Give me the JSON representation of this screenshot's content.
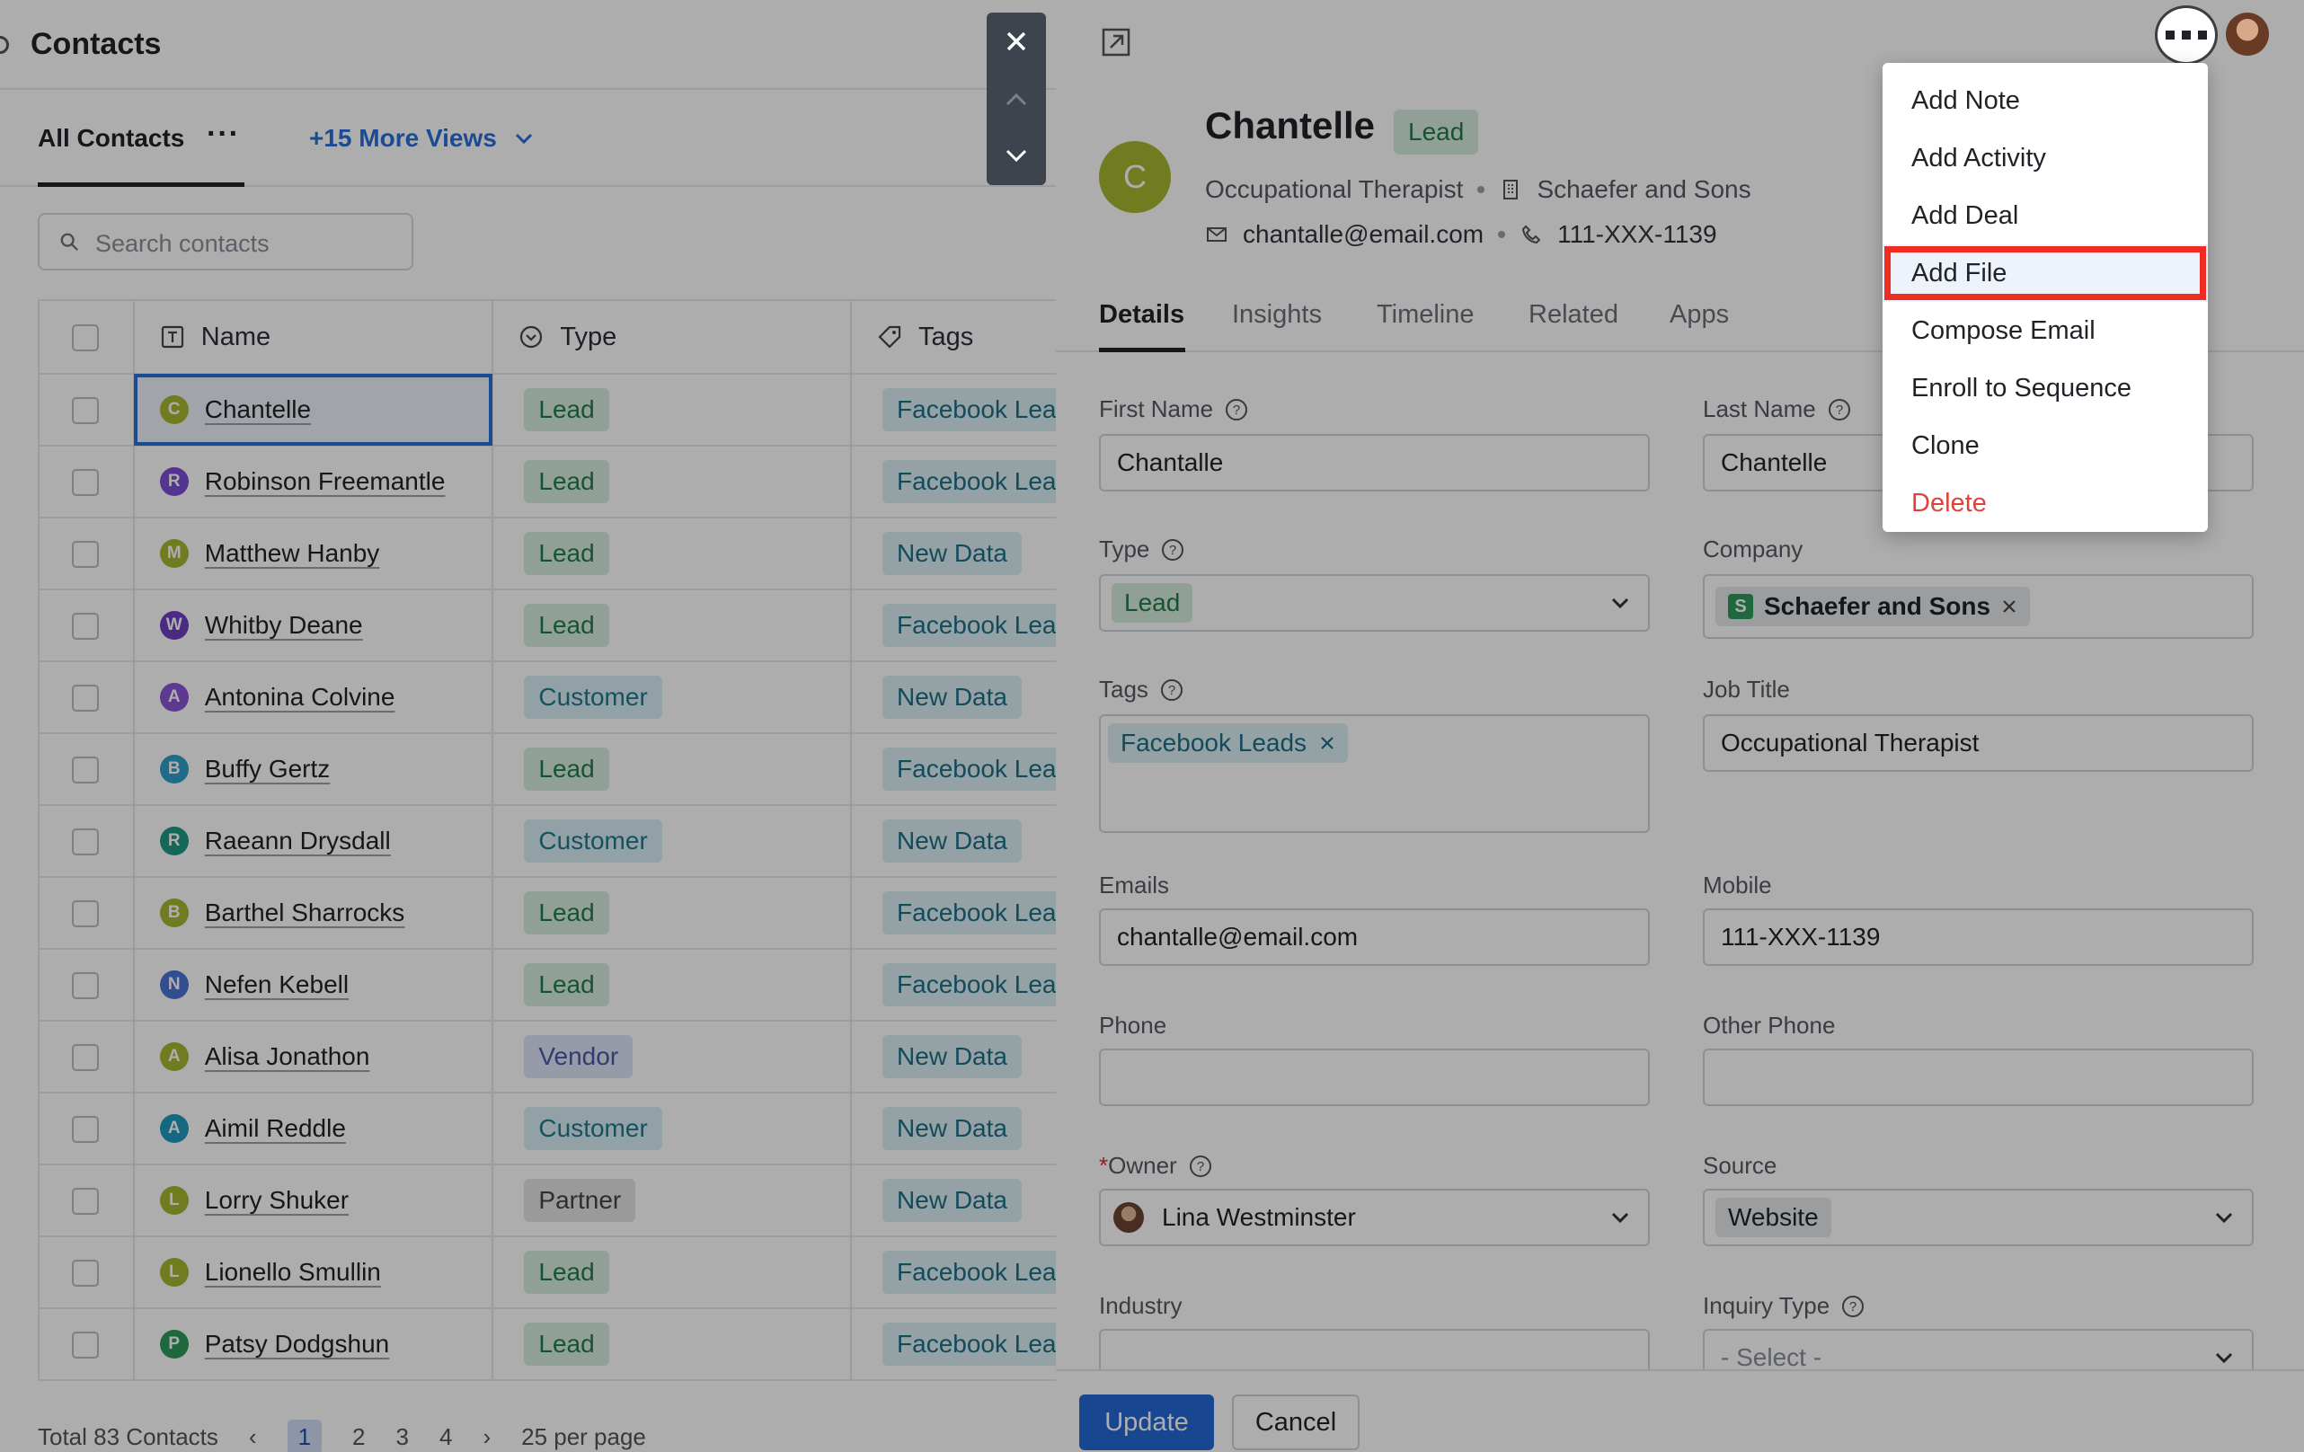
{
  "list": {
    "title": "Contacts",
    "view_tab": "All Contacts",
    "view_tab_more": "···",
    "more_views": "+15 More Views",
    "search_placeholder": "Search contacts",
    "columns": {
      "name": "Name",
      "type": "Type",
      "tags": "Tags"
    },
    "rows": [
      {
        "initial": "C",
        "name": "Chantelle",
        "type": "Lead",
        "tag": "Facebook Lea",
        "color": "#a7b52e"
      },
      {
        "initial": "R",
        "name": "Robinson Freemantle",
        "type": "Lead",
        "tag": "Facebook Lea",
        "color": "#7b4fd6"
      },
      {
        "initial": "M",
        "name": "Matthew Hanby",
        "type": "Lead",
        "tag": "New Data",
        "color": "#a7b52e"
      },
      {
        "initial": "W",
        "name": "Whitby Deane",
        "type": "Lead",
        "tag": "Facebook Lea",
        "color": "#6e3fc2"
      },
      {
        "initial": "A",
        "name": "Antonina Colvine",
        "type": "Customer",
        "tag": "New Data",
        "color": "#8a55d8"
      },
      {
        "initial": "B",
        "name": "Buffy Gertz",
        "type": "Lead",
        "tag": "Facebook Lea",
        "color": "#2ea0c9"
      },
      {
        "initial": "R",
        "name": "Raeann Drysdall",
        "type": "Customer",
        "tag": "New Data",
        "color": "#1f9a84"
      },
      {
        "initial": "B",
        "name": "Barthel Sharrocks",
        "type": "Lead",
        "tag": "Facebook Lea",
        "color": "#a7b52e"
      },
      {
        "initial": "N",
        "name": "Nefen Kebell",
        "type": "Lead",
        "tag": "Facebook Lea",
        "color": "#4b74d6"
      },
      {
        "initial": "A",
        "name": "Alisa Jonathon",
        "type": "Vendor",
        "tag": "New Data",
        "color": "#a7b52e"
      },
      {
        "initial": "A",
        "name": "Aimil Reddle",
        "type": "Customer",
        "tag": "New Data",
        "color": "#1f9abf"
      },
      {
        "initial": "L",
        "name": "Lorry Shuker",
        "type": "Partner",
        "tag": "New Data",
        "color": "#a7b52e"
      },
      {
        "initial": "L",
        "name": "Lionello Smullin",
        "type": "Lead",
        "tag": "Facebook Lea",
        "color": "#a7b52e"
      },
      {
        "initial": "P",
        "name": "Patsy Dodgshun",
        "type": "Lead",
        "tag": "Facebook Lea",
        "color": "#2f9a5b"
      }
    ],
    "pager": {
      "total": "Total 83 Contacts",
      "prev": "‹",
      "pages": [
        "1",
        "2",
        "3",
        "4"
      ],
      "next": "›",
      "per_page": "25 per page"
    }
  },
  "detail": {
    "name": "Chantelle",
    "initial": "C",
    "badge": "Lead",
    "job_title": "Occupational Therapist",
    "company": "Schaefer and Sons",
    "email": "chantalle@email.com",
    "phone": "111-XXX-1139",
    "tabs": [
      "Details",
      "Insights",
      "Timeline",
      "Related",
      "Apps"
    ],
    "fields": {
      "first_name_label": "First Name",
      "first_name": "Chantalle",
      "last_name_label": "Last Name",
      "last_name": "Chantelle",
      "type_label": "Type",
      "type": "Lead",
      "company_label": "Company",
      "company_initial": "S",
      "company": "Schaefer and Sons",
      "tags_label": "Tags",
      "tag": "Facebook Leads",
      "job_title_label": "Job Title",
      "job_title": "Occupational Therapist",
      "emails_label": "Emails",
      "email": "chantalle@email.com",
      "mobile_label": "Mobile",
      "mobile": "111-XXX-1139",
      "phone_label": "Phone",
      "phone": "",
      "other_phone_label": "Other Phone",
      "other_phone": "",
      "owner_required": "*",
      "owner_label": "Owner",
      "owner": "Lina Westminster",
      "source_label": "Source",
      "source": "Website",
      "industry_label": "Industry",
      "industry": "",
      "inquiry_type_label": "Inquiry Type",
      "inquiry_type": "- Select -"
    },
    "update_label": "Update",
    "cancel_label": "Cancel"
  },
  "menu": {
    "items": [
      "Add Note",
      "Add Activity",
      "Add Deal",
      "Add File",
      "Compose Email",
      "Enroll to Sequence",
      "Clone",
      "Delete"
    ],
    "highlighted": "Add File"
  },
  "colors": {
    "accent": "#2468d6",
    "highlight_border": "#ef2b22",
    "danger": "#e0413a",
    "lead_bg": "#d6ecdf",
    "tag_bg": "#dbedf4"
  }
}
